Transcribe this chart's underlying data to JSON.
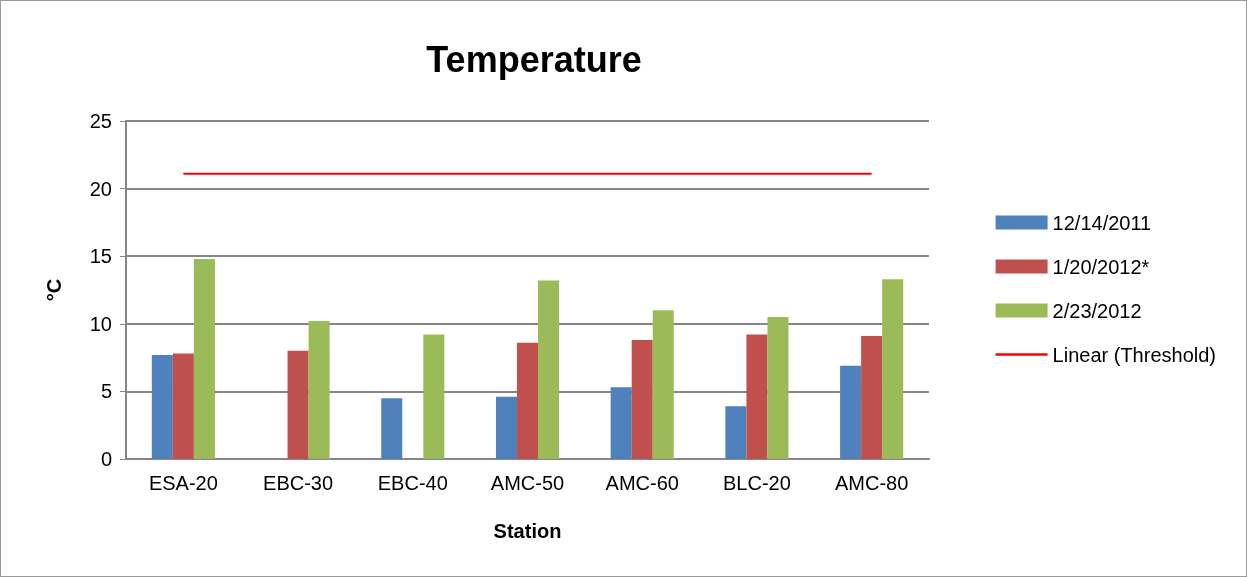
{
  "chart_data": {
    "type": "bar",
    "title": "Temperature",
    "xlabel": "Station",
    "ylabel": "°C",
    "categories": [
      "ESA-20",
      "EBC-30",
      "EBC-40",
      "AMC-50",
      "AMC-60",
      "BLC-20",
      "AMC-80"
    ],
    "series": [
      {
        "name": "12/14/2011",
        "color": "#4f81bd",
        "values": [
          7.7,
          null,
          4.5,
          4.6,
          5.3,
          3.9,
          6.9
        ]
      },
      {
        "name": "1/20/2012*",
        "color": "#c0504d",
        "values": [
          7.8,
          8.0,
          null,
          8.6,
          8.8,
          9.2,
          9.1
        ]
      },
      {
        "name": "2/23/2012",
        "color": "#9bbb59",
        "values": [
          14.8,
          10.2,
          9.2,
          13.2,
          11.0,
          10.5,
          13.3
        ]
      },
      {
        "name": "Linear (Threshold)",
        "type": "line",
        "color": "#ff0000",
        "marker": "none",
        "values": [
          21.1,
          21.1,
          21.1,
          21.1,
          21.1,
          21.1,
          21.1
        ]
      }
    ],
    "ylim": [
      0,
      25
    ],
    "yticks": [
      0,
      5,
      10,
      15,
      20,
      25
    ],
    "grid": "y",
    "legend": "right"
  }
}
